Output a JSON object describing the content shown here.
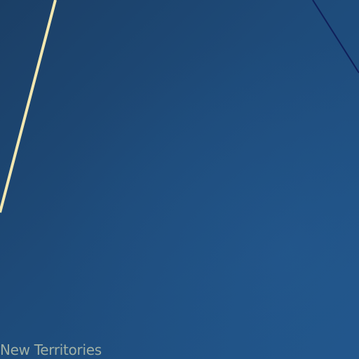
{
  "map": {
    "region_label": "New Territories",
    "colors": {
      "water": "#1e4a78",
      "primary_route": "#f3e8b0",
      "secondary_route": "#0f1f5a",
      "label_text": "#9fb0a6"
    }
  }
}
